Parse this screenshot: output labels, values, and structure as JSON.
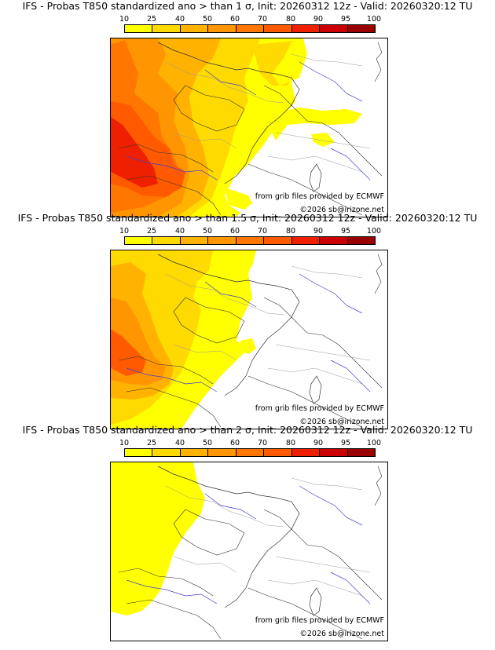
{
  "legend": {
    "ticks": [
      "10",
      "25",
      "40",
      "50",
      "60",
      "70",
      "80",
      "90",
      "95",
      "100"
    ],
    "colors": [
      "#ffff00",
      "#ffda00",
      "#ffb300",
      "#ff9500",
      "#ff7700",
      "#ff5a00",
      "#ee2000",
      "#cc0000",
      "#990000",
      "#600000"
    ]
  },
  "panels": [
    {
      "title": "IFS - Probas T850  standardized ano > than 1 σ, Init: 20260312 12z - Valid: 20260320:12 TU"
    },
    {
      "title": "IFS - Probas T850  standardized ano > than 1.5 σ, Init: 20260312 12z - Valid: 20260320:12 TU"
    },
    {
      "title": "IFS - Probas T850  standardized ano > than 2 σ, Init: 20260312 12z - Valid: 20260320:12 TU"
    }
  ],
  "credits": {
    "source": "from grib files provided by ECMWF",
    "copyright": "©2026 sb@irizone.net"
  }
}
